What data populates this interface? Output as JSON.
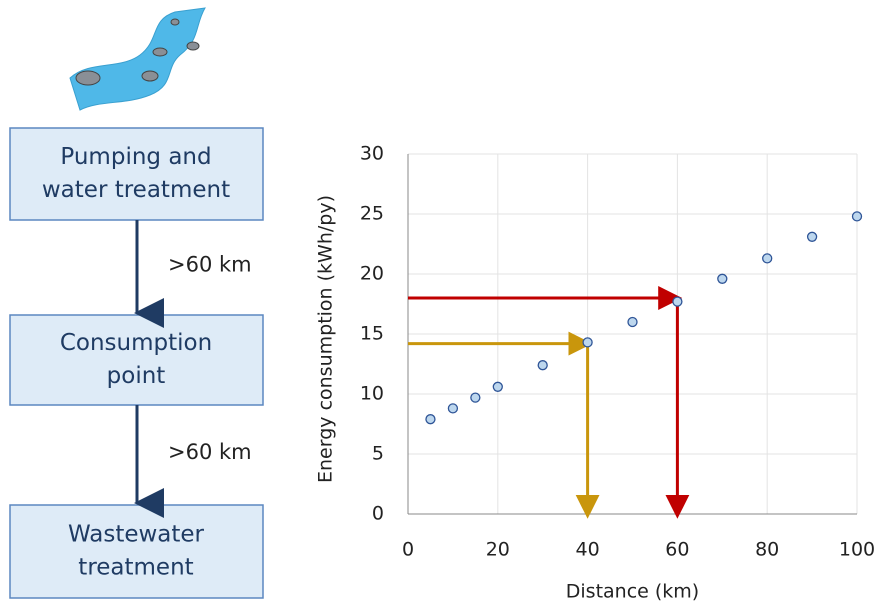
{
  "flow": {
    "nodes": [
      {
        "lines": [
          "Pumping and",
          "water treatment"
        ]
      },
      {
        "lines": [
          "Consumption",
          "point"
        ]
      },
      {
        "lines": [
          "Wastewater",
          "treatment"
        ]
      }
    ],
    "edges": [
      {
        "label": ">60 km"
      },
      {
        "label": ">60 km"
      }
    ]
  },
  "chart_data": {
    "type": "scatter",
    "xlabel": "Distance (km)",
    "ylabel": "Energy consumption (kWh/py)",
    "x": [
      5,
      10,
      15,
      20,
      30,
      40,
      50,
      60,
      70,
      80,
      90,
      100
    ],
    "values": [
      7.9,
      8.8,
      9.7,
      10.6,
      12.4,
      14.3,
      16.0,
      17.7,
      19.6,
      21.3,
      23.1,
      24.8
    ],
    "color": "#bdd7ee",
    "edge_color": "#2f5597",
    "xlim": [
      0,
      100
    ],
    "ylim": [
      0,
      30
    ],
    "xticks": [
      0,
      20,
      40,
      60,
      80,
      100
    ],
    "yticks": [
      0,
      5,
      10,
      15,
      20,
      25,
      30
    ],
    "grid": true,
    "guides": [
      {
        "x": 60,
        "y": 18,
        "color": "#c00000"
      },
      {
        "x": 40,
        "y": 14.2,
        "color": "#c9960c"
      }
    ]
  }
}
